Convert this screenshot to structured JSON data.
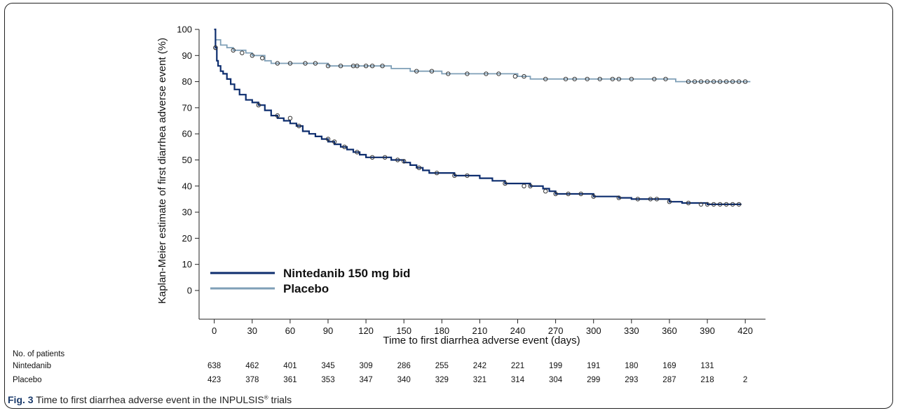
{
  "chart_data": {
    "type": "line",
    "subtype": "kaplan-meier step",
    "ylabel": "Kaplan-Meier estimate of first diarrhea adverse event (%)",
    "xlabel": "Time to first diarrhea adverse event (days)",
    "xticks": [
      0,
      30,
      60,
      90,
      120,
      150,
      180,
      210,
      240,
      270,
      300,
      330,
      360,
      390,
      420
    ],
    "yticks": [
      0,
      10,
      20,
      30,
      40,
      50,
      60,
      70,
      80,
      90,
      100
    ],
    "xlim": [
      -12,
      436
    ],
    "ylim": [
      -11,
      100
    ],
    "legend_position": "bottom-left",
    "series": [
      {
        "name": "Nintedanib 150 mg bid",
        "color": "#0d2d6e",
        "steps": [
          [
            0,
            100
          ],
          [
            1,
            93
          ],
          [
            2,
            88
          ],
          [
            3,
            86
          ],
          [
            5,
            84
          ],
          [
            7,
            83
          ],
          [
            10,
            81
          ],
          [
            13,
            79
          ],
          [
            16,
            77
          ],
          [
            20,
            75
          ],
          [
            25,
            73
          ],
          [
            30,
            72
          ],
          [
            35,
            71
          ],
          [
            40,
            69
          ],
          [
            45,
            67
          ],
          [
            50,
            66
          ],
          [
            55,
            65
          ],
          [
            60,
            64
          ],
          [
            65,
            63
          ],
          [
            70,
            61
          ],
          [
            75,
            60
          ],
          [
            80,
            59
          ],
          [
            85,
            58
          ],
          [
            90,
            57
          ],
          [
            95,
            56
          ],
          [
            100,
            55
          ],
          [
            105,
            54
          ],
          [
            110,
            53
          ],
          [
            115,
            52
          ],
          [
            120,
            51
          ],
          [
            130,
            51
          ],
          [
            140,
            50
          ],
          [
            150,
            49
          ],
          [
            155,
            48
          ],
          [
            160,
            47
          ],
          [
            165,
            46
          ],
          [
            170,
            45
          ],
          [
            180,
            45
          ],
          [
            190,
            44
          ],
          [
            200,
            44
          ],
          [
            210,
            43
          ],
          [
            220,
            42
          ],
          [
            230,
            41
          ],
          [
            240,
            41
          ],
          [
            250,
            40
          ],
          [
            260,
            39
          ],
          [
            265,
            38
          ],
          [
            270,
            37
          ],
          [
            280,
            37
          ],
          [
            290,
            37
          ],
          [
            300,
            36
          ],
          [
            310,
            36
          ],
          [
            320,
            35.5
          ],
          [
            330,
            35
          ],
          [
            340,
            35
          ],
          [
            350,
            35
          ],
          [
            360,
            34
          ],
          [
            370,
            33.5
          ],
          [
            380,
            33.5
          ],
          [
            390,
            33
          ],
          [
            400,
            33
          ],
          [
            410,
            33
          ],
          [
            417,
            33
          ]
        ],
        "censored": [
          [
            1,
            93
          ],
          [
            35,
            71
          ],
          [
            50,
            67
          ],
          [
            60,
            66
          ],
          [
            67,
            63
          ],
          [
            90,
            58
          ],
          [
            95,
            57
          ],
          [
            103,
            55
          ],
          [
            113,
            53
          ],
          [
            125,
            51
          ],
          [
            135,
            51
          ],
          [
            145,
            50
          ],
          [
            150,
            49.5
          ],
          [
            162,
            47
          ],
          [
            176,
            45
          ],
          [
            190,
            44
          ],
          [
            200,
            44
          ],
          [
            230,
            41
          ],
          [
            245,
            40
          ],
          [
            250,
            40
          ],
          [
            262,
            38
          ],
          [
            270,
            37
          ],
          [
            280,
            37
          ],
          [
            290,
            37
          ],
          [
            300,
            36
          ],
          [
            320,
            35.5
          ],
          [
            335,
            35
          ],
          [
            345,
            35
          ],
          [
            350,
            35
          ],
          [
            360,
            34
          ],
          [
            375,
            33.5
          ],
          [
            385,
            33
          ],
          [
            390,
            33
          ],
          [
            395,
            33
          ],
          [
            400,
            33
          ],
          [
            405,
            33
          ],
          [
            410,
            33
          ],
          [
            415,
            33
          ]
        ]
      },
      {
        "name": "Placebo",
        "color": "#7f9fb7",
        "steps": [
          [
            0,
            100
          ],
          [
            1,
            96
          ],
          [
            5,
            94
          ],
          [
            10,
            93
          ],
          [
            15,
            92
          ],
          [
            25,
            91
          ],
          [
            30,
            90
          ],
          [
            40,
            88
          ],
          [
            45,
            87
          ],
          [
            60,
            87
          ],
          [
            80,
            87
          ],
          [
            90,
            86
          ],
          [
            120,
            86
          ],
          [
            135,
            86
          ],
          [
            140,
            85
          ],
          [
            155,
            84
          ],
          [
            165,
            84
          ],
          [
            180,
            83
          ],
          [
            200,
            83
          ],
          [
            240,
            82
          ],
          [
            250,
            81
          ],
          [
            270,
            81
          ],
          [
            300,
            81
          ],
          [
            330,
            81
          ],
          [
            350,
            81
          ],
          [
            365,
            80
          ],
          [
            370,
            80
          ],
          [
            390,
            80
          ],
          [
            410,
            80
          ],
          [
            424,
            80
          ]
        ],
        "censored": [
          [
            1,
            93
          ],
          [
            15,
            92
          ],
          [
            22,
            91
          ],
          [
            30,
            90
          ],
          [
            38,
            89
          ],
          [
            50,
            87
          ],
          [
            60,
            87
          ],
          [
            72,
            87
          ],
          [
            80,
            87
          ],
          [
            90,
            86
          ],
          [
            100,
            86
          ],
          [
            110,
            86
          ],
          [
            113,
            86
          ],
          [
            120,
            86
          ],
          [
            125,
            86
          ],
          [
            133,
            86
          ],
          [
            160,
            84
          ],
          [
            172,
            84
          ],
          [
            185,
            83
          ],
          [
            200,
            83
          ],
          [
            215,
            83
          ],
          [
            225,
            83
          ],
          [
            238,
            82
          ],
          [
            245,
            82
          ],
          [
            262,
            81
          ],
          [
            278,
            81
          ],
          [
            285,
            81
          ],
          [
            295,
            81
          ],
          [
            305,
            81
          ],
          [
            315,
            81
          ],
          [
            320,
            81
          ],
          [
            330,
            81
          ],
          [
            348,
            81
          ],
          [
            357,
            81
          ],
          [
            375,
            80
          ],
          [
            380,
            80
          ],
          [
            385,
            80
          ],
          [
            390,
            80
          ],
          [
            395,
            80
          ],
          [
            400,
            80
          ],
          [
            405,
            80
          ],
          [
            410,
            80
          ],
          [
            415,
            80
          ],
          [
            420,
            80
          ]
        ]
      }
    ]
  },
  "risk_table": {
    "header": "No. of patients",
    "rows": [
      {
        "label": "Nintedanib",
        "values": [
          "638",
          "462",
          "401",
          "345",
          "309",
          "286",
          "255",
          "242",
          "221",
          "199",
          "191",
          "180",
          "169",
          "131",
          ""
        ]
      },
      {
        "label": "Placebo",
        "values": [
          "423",
          "378",
          "361",
          "353",
          "347",
          "340",
          "329",
          "321",
          "314",
          "304",
          "299",
          "293",
          "287",
          "218",
          "2"
        ]
      }
    ]
  },
  "caption": {
    "label": "Fig. 3",
    "text_before": " Time to first diarrhea adverse event in the INPULSIS",
    "superscript": "®",
    "text_after": " trials"
  }
}
